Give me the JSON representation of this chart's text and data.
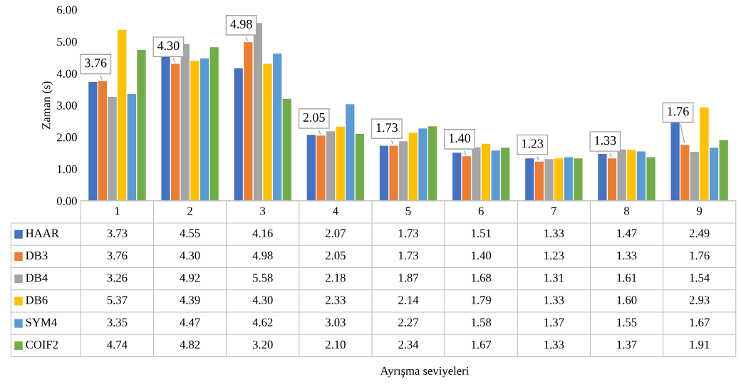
{
  "chart_data": {
    "type": "bar",
    "ylabel": "Zaman (s)",
    "categories": [
      "1",
      "2",
      "3",
      "4",
      "5",
      "6",
      "7",
      "8",
      "9"
    ],
    "series": [
      {
        "name": "HAAR",
        "color": "#4472c4",
        "values": [
          3.73,
          4.55,
          4.16,
          2.07,
          1.73,
          1.51,
          1.33,
          1.47,
          2.49
        ],
        "value_labels": [
          "3.73",
          "4.55",
          "4.16",
          "2.07",
          "1.73",
          "1.51",
          "1.33",
          "1.47",
          "2.49"
        ]
      },
      {
        "name": "DB3",
        "color": "#ed7d31",
        "values": [
          3.76,
          4.3,
          4.98,
          2.05,
          1.73,
          1.4,
          1.23,
          1.33,
          1.76
        ],
        "value_labels": [
          "3.76",
          "4.30",
          "4.98",
          "2.05",
          "1.73",
          "1.40",
          "1.23",
          "1.33",
          "1.76"
        ]
      },
      {
        "name": "DB4",
        "color": "#a5a5a5",
        "values": [
          3.26,
          4.92,
          5.58,
          2.18,
          1.87,
          1.68,
          1.31,
          1.61,
          1.54
        ],
        "value_labels": [
          "3.26",
          "4.92",
          "5.58",
          "2.18",
          "1.87",
          "1.68",
          "1.31",
          "1.61",
          "1.54"
        ]
      },
      {
        "name": "DB6",
        "color": "#ffc000",
        "values": [
          5.37,
          4.39,
          4.3,
          2.33,
          2.14,
          1.79,
          1.33,
          1.6,
          2.93
        ],
        "value_labels": [
          "5.37",
          "4.39",
          "4.30",
          "2.33",
          "2.14",
          "1.79",
          "1.33",
          "1.60",
          "2.93"
        ]
      },
      {
        "name": "SYM4",
        "color": "#5b9bd5",
        "values": [
          3.35,
          4.47,
          4.62,
          3.03,
          2.27,
          1.58,
          1.37,
          1.55,
          1.67
        ],
        "value_labels": [
          "3.35",
          "4.47",
          "4.62",
          "3.03",
          "2.27",
          "1.58",
          "1.37",
          "1.55",
          "1.67"
        ]
      },
      {
        "name": "COIF2",
        "color": "#70ad47",
        "values": [
          4.74,
          4.82,
          3.2,
          2.1,
          2.34,
          1.67,
          1.33,
          1.37,
          1.91
        ],
        "value_labels": [
          "4.74",
          "4.82",
          "3.20",
          "2.10",
          "2.34",
          "1.67",
          "1.33",
          "1.37",
          "1.91"
        ]
      }
    ],
    "ylim": [
      0,
      6
    ],
    "yticks": [
      {
        "value": 0,
        "label": "0.00"
      },
      {
        "value": 1,
        "label": "1.00"
      },
      {
        "value": 2,
        "label": "2.00"
      },
      {
        "value": 3,
        "label": "3.00"
      },
      {
        "value": 4,
        "label": "4.00"
      },
      {
        "value": 5,
        "label": "5.00"
      },
      {
        "value": 6,
        "label": "6.00"
      }
    ],
    "grid": false,
    "legend": "bottom",
    "annotations": [
      "Ayrışma seviyeleri",
      {
        "text": "3.76",
        "x": "1",
        "y": 3.76
      },
      {
        "text": "4.30",
        "x": "2",
        "y": 4.3
      },
      {
        "text": "4.98",
        "x": "3",
        "y": 4.98
      },
      {
        "text": "2.05",
        "x": "4",
        "y": 2.05
      },
      {
        "text": "1.73",
        "x": "5",
        "y": 1.73
      },
      {
        "text": "1.40",
        "x": "6",
        "y": 1.4
      },
      {
        "text": "1.23",
        "x": "7",
        "y": 1.23
      },
      {
        "text": "1.33",
        "x": "8",
        "y": 1.33
      },
      {
        "text": "1.76",
        "x": "9",
        "y": 1.76
      }
    ]
  }
}
